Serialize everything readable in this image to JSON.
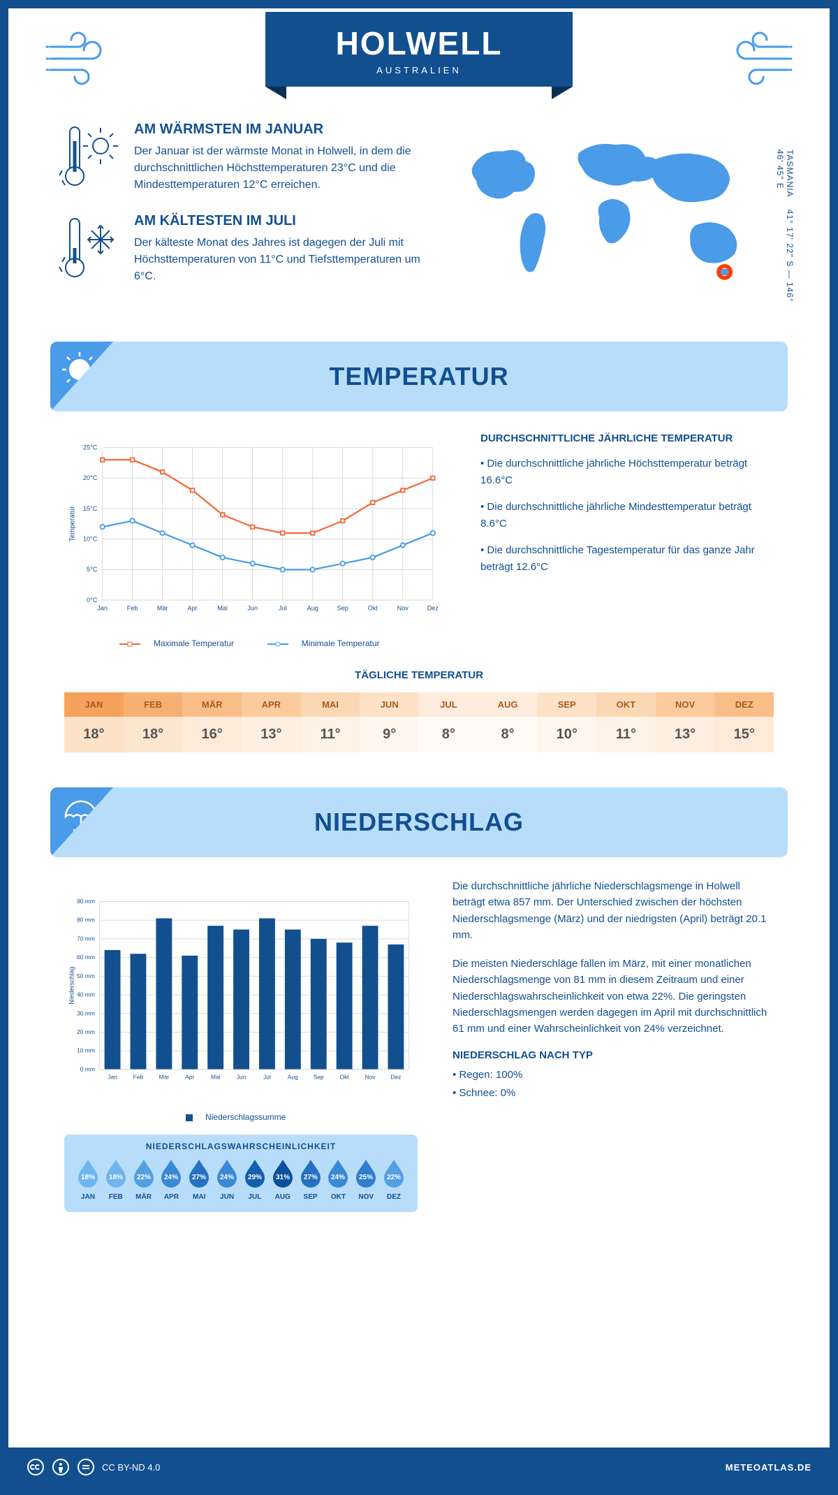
{
  "colors": {
    "primary": "#124f8f",
    "accent": "#4a9be8",
    "lightblue": "#b8ddfa",
    "max_line": "#f26b3a",
    "min_line": "#4a9be8",
    "grid": "#d6d6d6",
    "bar": "#124f8f",
    "marker": "#ff3b00"
  },
  "header": {
    "title": "HOLWELL",
    "subtitle": "AUSTRALIEN"
  },
  "intro": {
    "warm_title": "AM WÄRMSTEN IM JANUAR",
    "warm_text": "Der Januar ist der wärmste Monat in Holwell, in dem die durchschnittlichen Höchsttemperaturen 23°C und die Mindesttemperaturen 12°C erreichen.",
    "cold_title": "AM KÄLTESTEN IM JULI",
    "cold_text": "Der kälteste Monat des Jahres ist dagegen der Juli mit Höchsttemperaturen von 11°C und Tiefsttemperaturen um 6°C.",
    "coords": "41° 17' 22\" S — 146° 46' 45\" E",
    "region": "TASMANIA"
  },
  "temp_section": {
    "header": "TEMPERATUR",
    "info_title": "DURCHSCHNITTLICHE JÄHRLICHE TEMPERATUR",
    "info_1": "• Die durchschnittliche jährliche Höchsttemperatur beträgt 16.6°C",
    "info_2": "• Die durchschnittliche jährliche Mindesttemperatur beträgt 8.6°C",
    "info_3": "• Die durchschnittliche Tagestemperatur für das ganze Jahr beträgt 12.6°C",
    "legend_max": "Maximale Temperatur",
    "legend_min": "Minimale Temperatur",
    "y_label": "Temperatur",
    "daily_header": "TÄGLICHE TEMPERATUR",
    "chart": {
      "type": "line",
      "months": [
        "Jan",
        "Feb",
        "Mär",
        "Apr",
        "Mai",
        "Jun",
        "Jul",
        "Aug",
        "Sep",
        "Okt",
        "Nov",
        "Dez"
      ],
      "max_values": [
        23,
        23,
        21,
        18,
        14,
        12,
        11,
        11,
        13,
        16,
        18,
        20
      ],
      "min_values": [
        12,
        13,
        11,
        9,
        7,
        6,
        5,
        5,
        6,
        7,
        9,
        11
      ],
      "ylim": [
        0,
        25
      ],
      "ytick_step": 5,
      "y_unit": "°C"
    },
    "daily_months": [
      "JAN",
      "FEB",
      "MÄR",
      "APR",
      "MAI",
      "JUN",
      "JUL",
      "AUG",
      "SEP",
      "OKT",
      "NOV",
      "DEZ"
    ],
    "daily_values": [
      "18°",
      "18°",
      "16°",
      "13°",
      "11°",
      "9°",
      "8°",
      "8°",
      "10°",
      "11°",
      "13°",
      "15°"
    ],
    "daily_header_colors": [
      "#f5a25d",
      "#f7b072",
      "#f9be88",
      "#fbcb9e",
      "#fcd7b3",
      "#fde2c8",
      "#feecdc",
      "#feecdc",
      "#fde2c8",
      "#fcd7b3",
      "#fbcb9e",
      "#f9be88"
    ],
    "daily_value_colors": [
      "#fde2c8",
      "#fde6d0",
      "#feead8",
      "#feefe0",
      "#fff3e7",
      "#fff6ee",
      "#fffaf5",
      "#fffaf5",
      "#fff6ee",
      "#fff3e7",
      "#feefe0",
      "#feead8"
    ]
  },
  "precip_section": {
    "header": "NIEDERSCHLAG",
    "y_label": "Niederschlag",
    "legend": "Niederschlagssumme",
    "chart": {
      "type": "bar",
      "months": [
        "Jan",
        "Feb",
        "Mär",
        "Apr",
        "Mai",
        "Jun",
        "Jul",
        "Aug",
        "Sep",
        "Okt",
        "Nov",
        "Dez"
      ],
      "values": [
        64,
        62,
        81,
        61,
        77,
        75,
        81,
        75,
        70,
        68,
        77,
        67
      ],
      "ylim": [
        0,
        90
      ],
      "ytick_step": 10,
      "y_unit": " mm"
    },
    "prob_title": "NIEDERSCHLAGSWAHRSCHEINLICHKEIT",
    "prob_months": [
      "JAN",
      "FEB",
      "MÄR",
      "APR",
      "MAI",
      "JUN",
      "JUL",
      "AUG",
      "SEP",
      "OKT",
      "NOV",
      "DEZ"
    ],
    "prob_values": [
      "18%",
      "18%",
      "22%",
      "24%",
      "27%",
      "24%",
      "29%",
      "31%",
      "27%",
      "24%",
      "25%",
      "22%"
    ],
    "prob_colors": [
      "#6eb5ee",
      "#6eb5ee",
      "#529fe2",
      "#3a89d6",
      "#2471c2",
      "#3a89d6",
      "#155fb0",
      "#0c4f9b",
      "#2471c2",
      "#3a89d6",
      "#2f7dcb",
      "#529fe2"
    ],
    "text_1": "Die durchschnittliche jährliche Niederschlagsmenge in Holwell beträgt etwa 857 mm. Der Unterschied zwischen der höchsten Niederschlagsmenge (März) und der niedrigsten (April) beträgt 20.1 mm.",
    "text_2": "Die meisten Niederschläge fallen im März, mit einer monatlichen Niederschlagsmenge von 81 mm in diesem Zeitraum und einer Niederschlagswahrscheinlichkeit von etwa 22%. Die geringsten Niederschlagsmengen werden dagegen im April mit durchschnittlich 61 mm und einer Wahrscheinlichkeit von 24% verzeichnet.",
    "type_title": "NIEDERSCHLAG NACH TYP",
    "type_1": "• Regen: 100%",
    "type_2": "• Schnee: 0%"
  },
  "footer": {
    "license": "CC BY-ND 4.0",
    "site": "METEOATLAS.DE"
  }
}
